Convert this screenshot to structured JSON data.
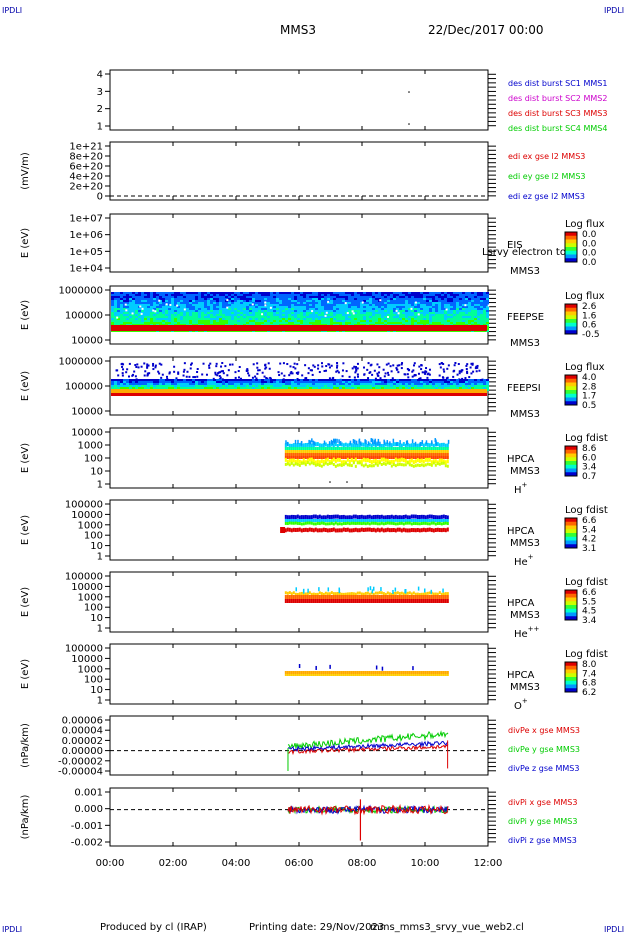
{
  "corner_tl": "IPDLI",
  "corner_tr": "IPDLI",
  "corner_bl": "IPDLI",
  "corner_br": "IPDLI",
  "header": {
    "mission": "MMS3",
    "date": "22/Dec/2017 00:00"
  },
  "footer": {
    "produced": "Produced by cl (IRAP)",
    "printing": "Printing date: 29/Nov/2023",
    "script": "mms_mms3_srvy_vue_web2.cl"
  },
  "colors": {
    "red": "#dd0000",
    "green": "#00cc00",
    "blue": "#0000cc",
    "magenta": "#cc00cc"
  },
  "chart_data": [
    {
      "type": "scatter",
      "ylim": [
        0.5,
        4.5
      ],
      "yticks": [
        "1",
        "2",
        "3",
        "4"
      ],
      "legend": [
        {
          "text": "des dist burst SC1 MMS1",
          "color": "#0000cc"
        },
        {
          "text": "des dist burst SC2 MMS2",
          "color": "#cc00cc"
        },
        {
          "text": "des dist burst SC3 MMS3",
          "color": "#dd0000"
        },
        {
          "text": "des dist burst SC4 MMS4",
          "color": "#00cc00"
        }
      ]
    },
    {
      "type": "line",
      "ylabel": "(mV/m)",
      "yticks": [
        "0",
        "2e+20",
        "4e+20",
        "6e+20",
        "8e+20",
        "1e+21"
      ],
      "legend": [
        {
          "text": "edi ex gse l2 MMS3",
          "color": "#dd0000"
        },
        {
          "text": "edi ey gse l2 MMS3",
          "color": "#00cc00"
        },
        {
          "text": "edi ez gse l2 MMS3",
          "color": "#0000cc"
        }
      ]
    },
    {
      "type": "heatmap",
      "ylabel": "E (eV)",
      "yticks": [
        "1e+04",
        "1e+05",
        "1e+06",
        "1e+07"
      ],
      "instrument": "EIS",
      "overlay": "Lsrvy electron to",
      "sc": "MMS3",
      "cbar_title": "Log flux",
      "cbar_labels": [
        "0.0",
        "0.0",
        "0.0",
        "0.0"
      ]
    },
    {
      "type": "heatmap",
      "ylabel": "E (eV)",
      "yticks": [
        "10000",
        "100000",
        "1000000"
      ],
      "instrument": "FEEPSE",
      "sc": "MMS3",
      "cbar_title": "Log flux",
      "cbar_labels": [
        "2.6",
        "1.6",
        "0.6",
        "-0.5"
      ]
    },
    {
      "type": "heatmap",
      "ylabel": "E (eV)",
      "yticks": [
        "10000",
        "100000",
        "1000000"
      ],
      "instrument": "FEEPSI",
      "sc": "MMS3",
      "cbar_title": "Log flux",
      "cbar_labels": [
        "4.0",
        "2.8",
        "1.7",
        "0.5"
      ]
    },
    {
      "type": "heatmap",
      "ylabel": "E (eV)",
      "yticks": [
        "1",
        "10",
        "100",
        "1000",
        "10000"
      ],
      "instrument": "HPCA",
      "sc": "MMS3",
      "species": "H",
      "charge": "+",
      "cbar_title": "Log fdist",
      "cbar_labels": [
        "8.6",
        "6.0",
        "3.4",
        "0.7"
      ]
    },
    {
      "type": "heatmap",
      "ylabel": "E (eV)",
      "yticks": [
        "1",
        "10",
        "100",
        "1000",
        "10000",
        "100000"
      ],
      "instrument": "HPCA",
      "sc": "MMS3",
      "species": "He",
      "charge": "+",
      "cbar_title": "Log fdist",
      "cbar_labels": [
        "6.6",
        "5.4",
        "4.2",
        "3.1"
      ]
    },
    {
      "type": "heatmap",
      "ylabel": "E (eV)",
      "yticks": [
        "1",
        "10",
        "100",
        "1000",
        "10000",
        "100000"
      ],
      "instrument": "HPCA",
      "sc": "MMS3",
      "species": "He",
      "charge": "++",
      "cbar_title": "Log fdist",
      "cbar_labels": [
        "6.6",
        "5.5",
        "4.5",
        "3.4"
      ]
    },
    {
      "type": "heatmap",
      "ylabel": "E (eV)",
      "yticks": [
        "1",
        "10",
        "100",
        "1000",
        "10000",
        "100000"
      ],
      "instrument": "HPCA",
      "sc": "MMS3",
      "species": "O",
      "charge": "+",
      "cbar_title": "Log fdist",
      "cbar_labels": [
        "8.0",
        "7.4",
        "6.8",
        "6.2"
      ]
    },
    {
      "type": "line",
      "ylabel": "(nPa/km)",
      "ylim": [
        -4e-05,
        6e-05
      ],
      "yticks": [
        "-0.00004",
        "-0.00002",
        "0.00000",
        "0.00002",
        "0.00004",
        "0.00006"
      ],
      "legend": [
        {
          "text": "divPe x gse MMS3",
          "color": "#dd0000"
        },
        {
          "text": "divPe y gse MMS3",
          "color": "#00cc00"
        },
        {
          "text": "divPe z gse MMS3",
          "color": "#0000cc"
        }
      ]
    },
    {
      "type": "line",
      "ylabel": "(nPa/km)",
      "ylim": [
        -0.0022,
        0.0012
      ],
      "yticks": [
        "-0.002",
        "-0.001",
        "0.000",
        "0.001"
      ],
      "legend": [
        {
          "text": "divPi x gse MMS3",
          "color": "#dd0000"
        },
        {
          "text": "divPi y gse MMS3",
          "color": "#00cc00"
        },
        {
          "text": "divPi z gse MMS3",
          "color": "#0000cc"
        }
      ]
    }
  ],
  "xaxis": {
    "ticks": [
      "00:00",
      "02:00",
      "04:00",
      "06:00",
      "08:00",
      "10:00",
      "12:00"
    ]
  }
}
